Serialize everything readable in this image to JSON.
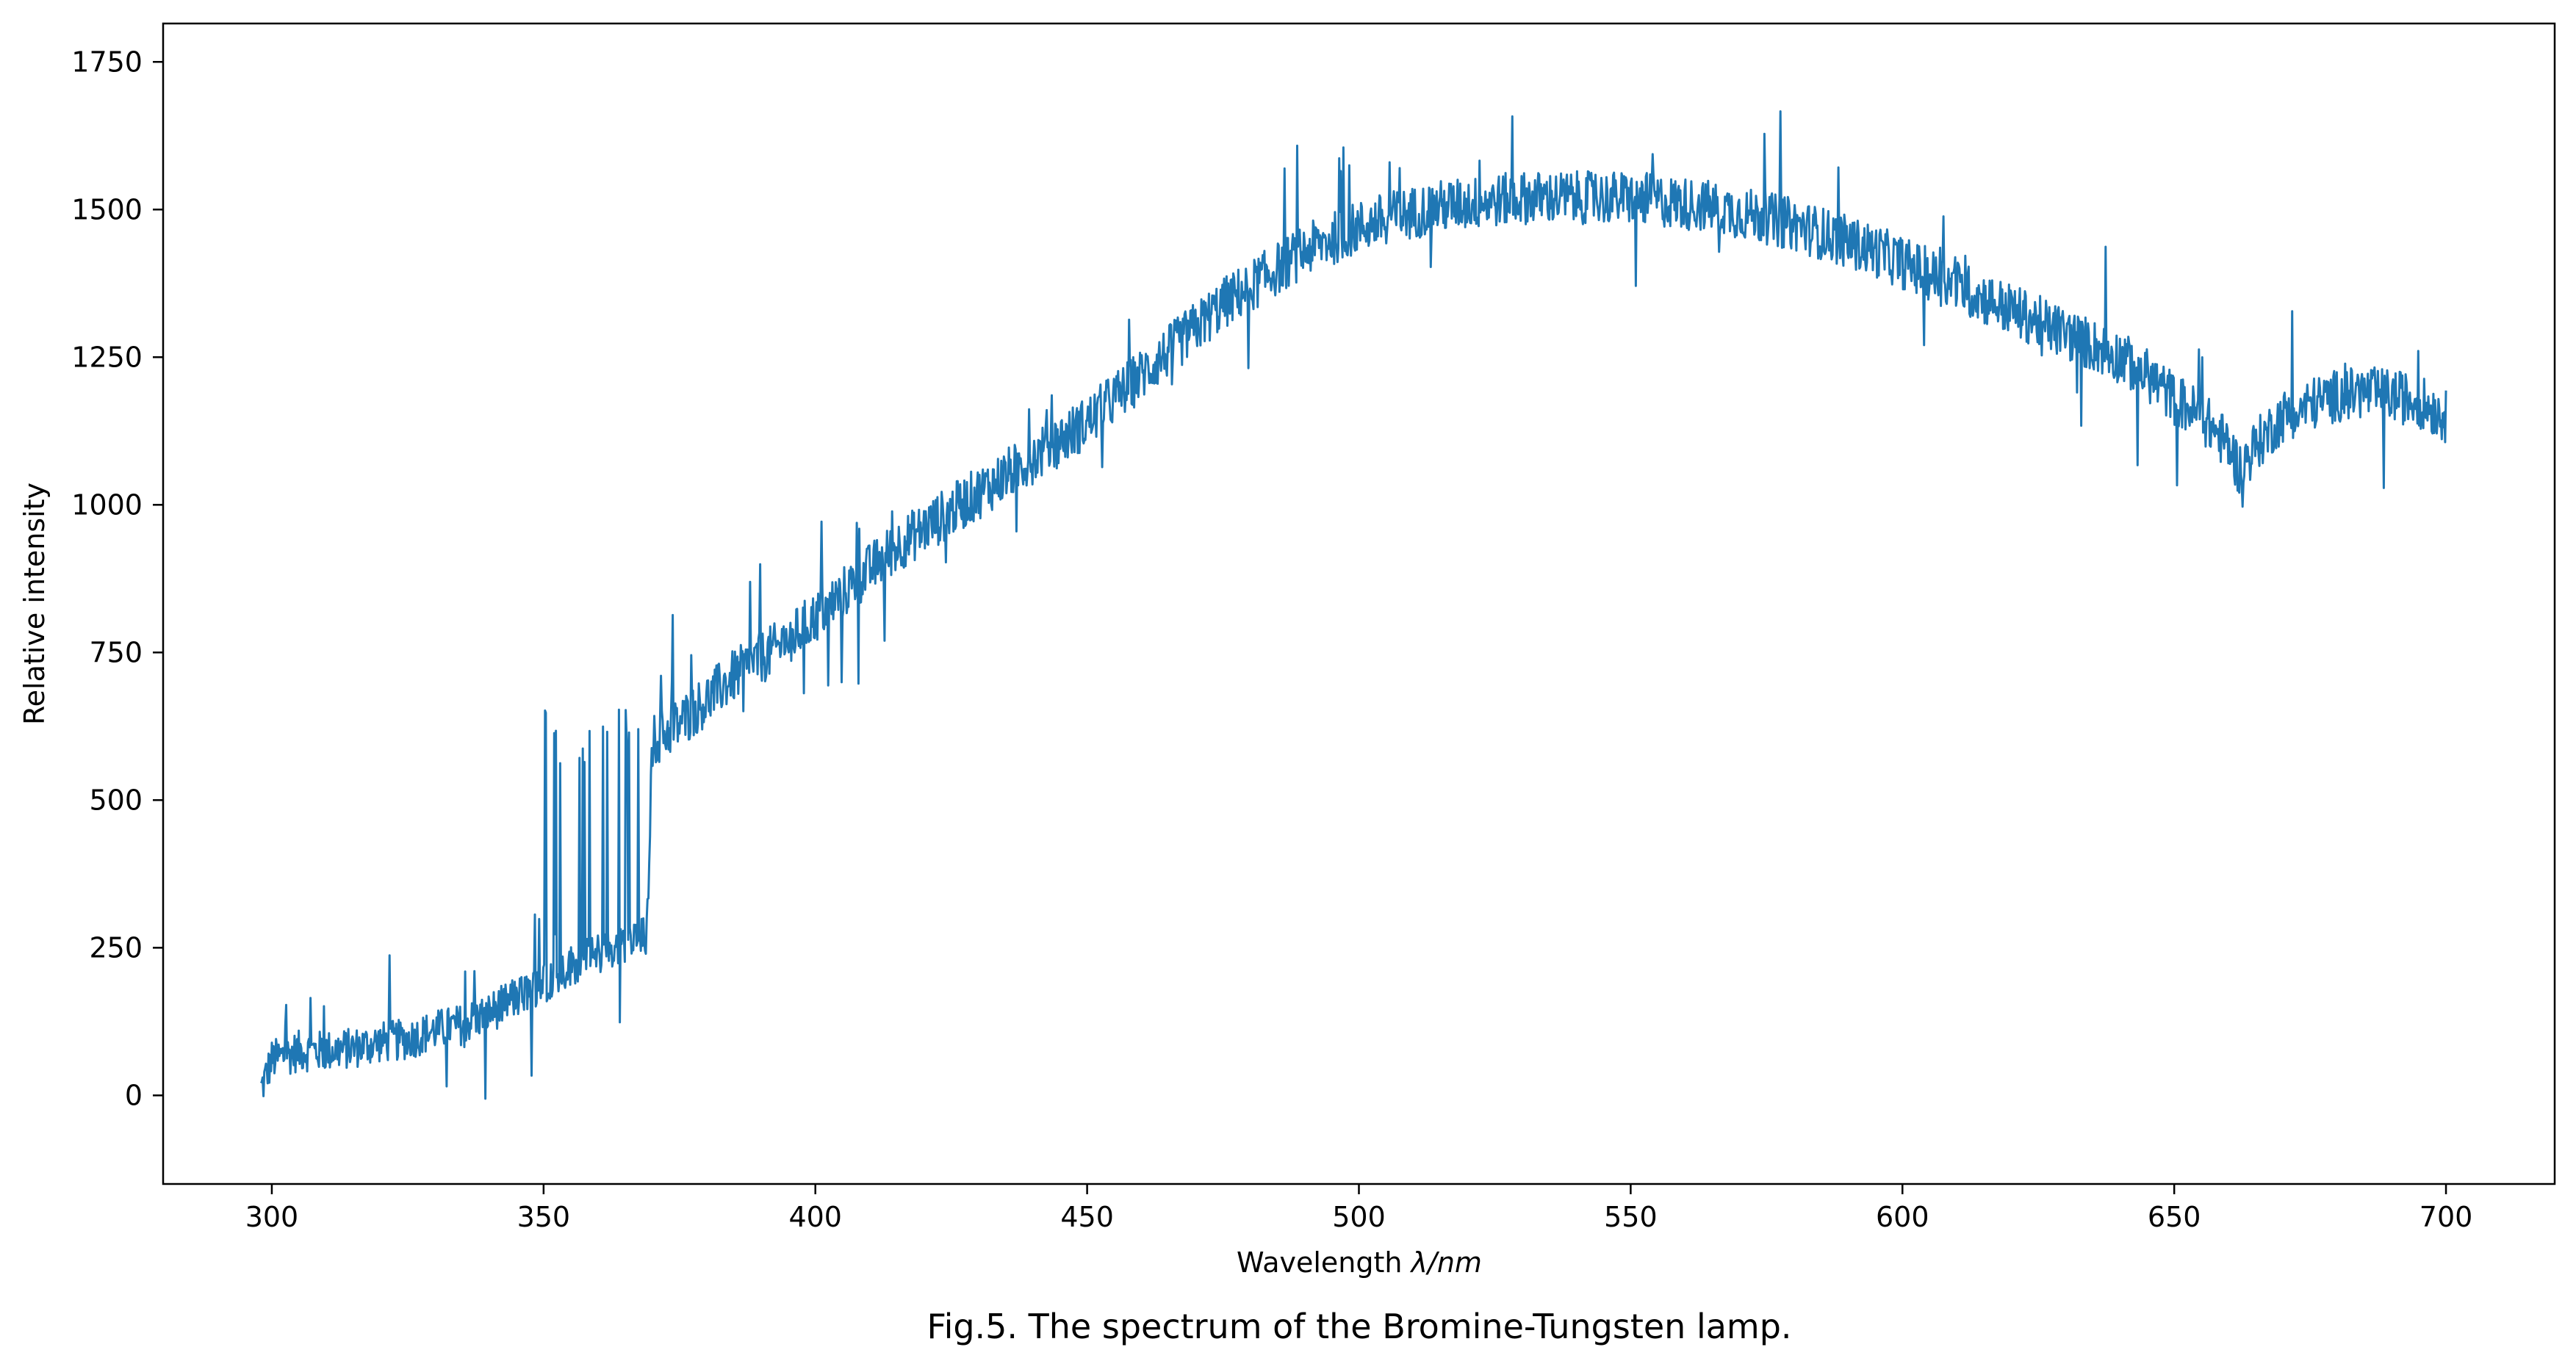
{
  "chart_data": {
    "type": "line",
    "title": "",
    "caption": "Fig.5. The spectrum of the Bromine-Tungsten lamp.",
    "xlabel_prefix": "Wavelength ",
    "xlabel_symbol": "λ/nm",
    "ylabel": "Relative intensity",
    "xlim": [
      280,
      720
    ],
    "ylim": [
      -150,
      1815
    ],
    "xticks": [
      300,
      350,
      400,
      450,
      500,
      550,
      600,
      650,
      700
    ],
    "yticks": [
      0,
      250,
      500,
      750,
      1000,
      1250,
      1500,
      1750
    ],
    "grid": false,
    "legend": "none",
    "line_color": "#1f77b4",
    "series": [
      {
        "x": [
          298,
          300,
          305,
          310,
          315,
          320,
          325,
          330,
          335,
          340,
          345,
          350,
          355,
          360,
          365,
          369,
          370,
          375,
          380,
          385,
          390,
          395,
          400,
          405,
          410,
          415,
          420,
          425,
          430,
          435,
          440,
          445,
          450,
          455,
          460,
          465,
          470,
          475,
          480,
          485,
          490,
          495,
          500,
          505,
          510,
          515,
          520,
          525,
          530,
          535,
          540,
          545,
          550,
          555,
          560,
          565,
          570,
          575,
          580,
          585,
          590,
          595,
          600,
          605,
          610,
          615,
          620,
          625,
          630,
          635,
          640,
          645,
          650,
          655,
          660,
          662,
          665,
          670,
          675,
          680,
          685,
          690,
          695,
          700
        ],
        "y": [
          10,
          60,
          75,
          75,
          80,
          90,
          95,
          110,
          120,
          140,
          165,
          190,
          220,
          240,
          255,
          270,
          600,
          630,
          670,
          710,
          740,
          770,
          810,
          850,
          890,
          930,
          960,
          990,
          1020,
          1050,
          1080,
          1110,
          1140,
          1180,
          1220,
          1260,
          1300,
          1340,
          1370,
          1400,
          1430,
          1450,
          1470,
          1485,
          1495,
          1505,
          1510,
          1515,
          1520,
          1520,
          1520,
          1520,
          1520,
          1515,
          1510,
          1505,
          1495,
          1485,
          1475,
          1460,
          1445,
          1430,
          1410,
          1390,
          1370,
          1350,
          1330,
          1310,
          1290,
          1270,
          1250,
          1220,
          1180,
          1150,
          1100,
          1060,
          1100,
          1150,
          1170,
          1185,
          1190,
          1185,
          1175,
          1150
        ]
      }
    ]
  }
}
